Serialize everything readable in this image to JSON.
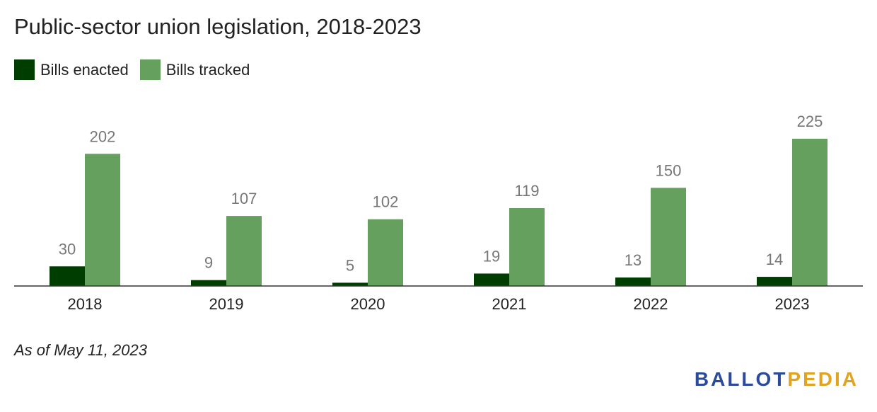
{
  "chart_data": {
    "type": "bar",
    "title": "Public-sector union legislation, 2018-2023",
    "categories": [
      "2018",
      "2019",
      "2020",
      "2021",
      "2022",
      "2023"
    ],
    "series": [
      {
        "name": "Bills enacted",
        "values": [
          30,
          9,
          5,
          19,
          13,
          14
        ],
        "color": "#003d00"
      },
      {
        "name": "Bills tracked",
        "values": [
          202,
          107,
          102,
          119,
          150,
          225
        ],
        "color": "#66a05e"
      }
    ],
    "ylim": [
      0,
      225
    ],
    "grid": false,
    "legend": "top-left"
  },
  "footnote": "As of May 11, 2023",
  "logo": {
    "part1": "BALLOT",
    "part2": "PEDIA"
  }
}
